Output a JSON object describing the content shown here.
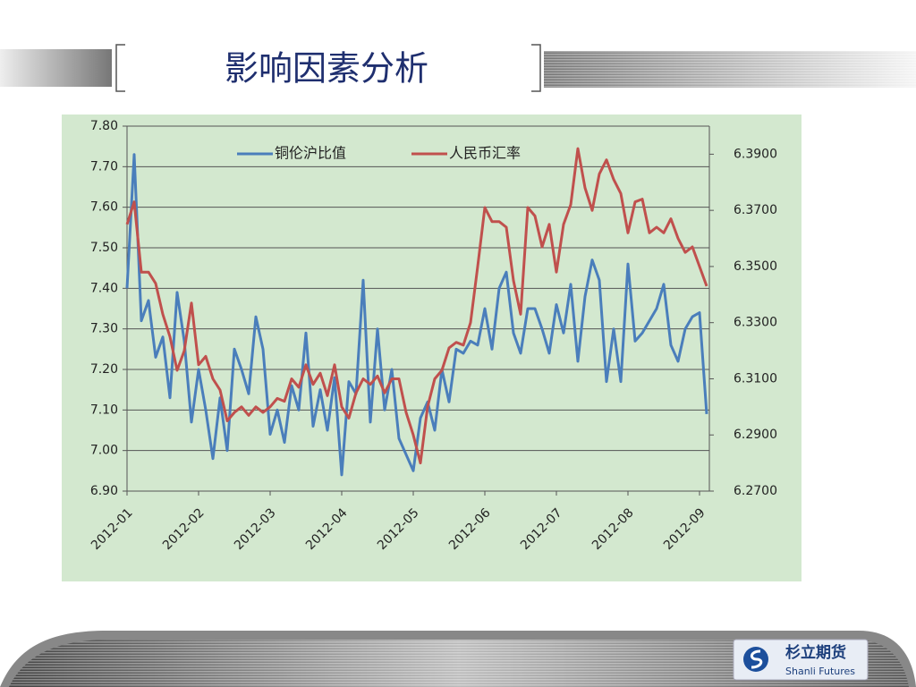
{
  "slide_title": "影响因素分析",
  "logo": {
    "name": "杉立期货",
    "subtitle": "Shanli Futures"
  },
  "chart_data": {
    "type": "line",
    "categories": [
      "2012-01",
      null,
      null,
      null,
      null,
      null,
      null,
      null,
      null,
      null,
      "2012-02",
      null,
      null,
      null,
      null,
      null,
      null,
      null,
      null,
      null,
      "2012-03",
      null,
      null,
      null,
      null,
      null,
      null,
      null,
      null,
      null,
      "2012-04",
      null,
      null,
      null,
      null,
      null,
      null,
      null,
      null,
      null,
      "2012-05",
      null,
      null,
      null,
      null,
      null,
      null,
      null,
      null,
      null,
      "2012-06",
      null,
      null,
      null,
      null,
      null,
      null,
      null,
      null,
      null,
      "2012-07",
      null,
      null,
      null,
      null,
      null,
      null,
      null,
      null,
      null,
      "2012-08",
      null,
      null,
      null,
      null,
      null,
      null,
      null,
      null,
      null,
      "2012-09",
      null
    ],
    "series": [
      {
        "name": "铜伦沪比值",
        "color": "#4a7ebb",
        "axis": "y",
        "values": [
          7.4,
          7.73,
          7.32,
          7.37,
          7.23,
          7.28,
          7.13,
          7.39,
          7.27,
          7.07,
          7.2,
          7.1,
          6.98,
          7.13,
          7.0,
          7.25,
          7.2,
          7.14,
          7.33,
          7.25,
          7.04,
          7.1,
          7.02,
          7.16,
          7.1,
          7.29,
          7.06,
          7.15,
          7.05,
          7.18,
          6.94,
          7.17,
          7.14,
          7.42,
          7.07,
          7.3,
          7.1,
          7.2,
          7.03,
          6.99,
          6.95,
          7.08,
          7.12,
          7.05,
          7.2,
          7.12,
          7.25,
          7.24,
          7.27,
          7.26,
          7.35,
          7.25,
          7.4,
          7.44,
          7.29,
          7.24,
          7.35,
          7.35,
          7.3,
          7.24,
          7.36,
          7.29,
          7.41,
          7.22,
          7.38,
          7.47,
          7.42,
          7.17,
          7.3,
          7.17,
          7.46,
          7.27,
          7.29,
          7.32,
          7.35,
          7.41,
          7.26,
          7.22,
          7.3,
          7.33,
          7.34,
          7.09
        ]
      },
      {
        "name": "人民币汇率",
        "color": "#c0504d",
        "axis": "y2",
        "values": [
          6.365,
          6.373,
          6.348,
          6.348,
          6.344,
          6.333,
          6.325,
          6.313,
          6.32,
          6.337,
          6.315,
          6.318,
          6.31,
          6.306,
          6.295,
          6.298,
          6.3,
          6.297,
          6.3,
          6.298,
          6.3,
          6.303,
          6.302,
          6.31,
          6.307,
          6.315,
          6.308,
          6.312,
          6.304,
          6.315,
          6.3,
          6.296,
          6.305,
          6.31,
          6.308,
          6.311,
          6.305,
          6.31,
          6.31,
          6.298,
          6.29,
          6.28,
          6.3,
          6.31,
          6.313,
          6.321,
          6.323,
          6.322,
          6.33,
          6.35,
          6.371,
          6.366,
          6.366,
          6.364,
          6.345,
          6.333,
          6.371,
          6.368,
          6.357,
          6.365,
          6.348,
          6.365,
          6.372,
          6.392,
          6.378,
          6.37,
          6.383,
          6.388,
          6.381,
          6.376,
          6.362,
          6.373,
          6.374,
          6.362,
          6.364,
          6.362,
          6.367,
          6.36,
          6.355,
          6.357,
          6.35,
          6.343
        ]
      }
    ],
    "ylim": [
      6.9,
      7.8
    ],
    "yticks": [
      {
        "value": 6.9,
        "label": "6.90"
      },
      {
        "value": 7.0,
        "label": "7.00"
      },
      {
        "value": 7.1,
        "label": "7.10"
      },
      {
        "value": 7.2,
        "label": "7.20"
      },
      {
        "value": 7.3,
        "label": "7.30"
      },
      {
        "value": 7.4,
        "label": "7.40"
      },
      {
        "value": 7.5,
        "label": "7.50"
      },
      {
        "value": 7.6,
        "label": "7.60"
      },
      {
        "value": 7.7,
        "label": "7.70"
      },
      {
        "value": 7.8,
        "label": "7.80"
      }
    ],
    "y2lim": [
      6.27,
      6.4
    ],
    "y2ticks": [
      {
        "value": 6.27,
        "label": "6.2700"
      },
      {
        "value": 6.29,
        "label": "6.2900"
      },
      {
        "value": 6.31,
        "label": "6.3100"
      },
      {
        "value": 6.33,
        "label": "6.3300"
      },
      {
        "value": 6.35,
        "label": "6.3500"
      },
      {
        "value": 6.37,
        "label": "6.3700"
      },
      {
        "value": 6.39,
        "label": "6.3900"
      }
    ],
    "grid": true,
    "legend": "top",
    "background": "#d3e8cf"
  }
}
